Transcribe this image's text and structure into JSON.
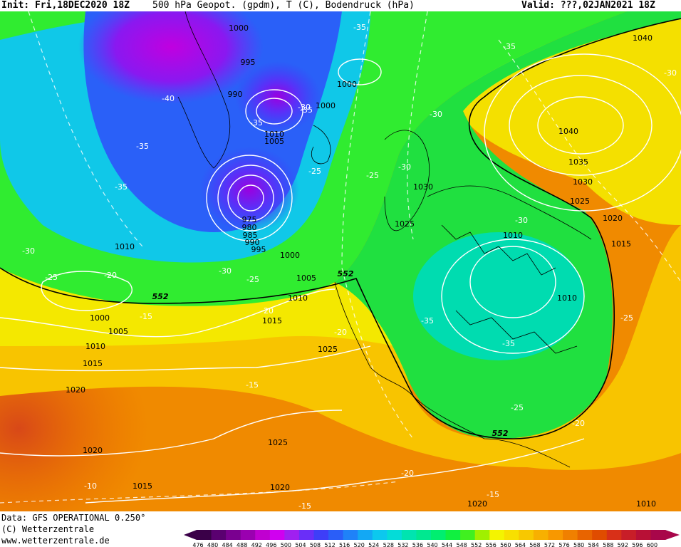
{
  "header": {
    "init": "Init: Fri,18DEC2020 18Z",
    "title": "500 hPa Geopot. (gpdm), T (C), Bodendruck (hPa)",
    "valid": "Valid: ???,02JAN2021 18Z"
  },
  "footer": {
    "data_line": "Data: GFS OPERATIONAL 0.250°",
    "copyright": "(C) Wetterzentrale",
    "website": "www.wetterzentrale.de"
  },
  "legend": {
    "ticks": [
      "476",
      "480",
      "484",
      "488",
      "492",
      "496",
      "500",
      "504",
      "508",
      "512",
      "516",
      "520",
      "524",
      "528",
      "532",
      "536",
      "540",
      "544",
      "548",
      "552",
      "556",
      "560",
      "564",
      "568",
      "572",
      "576",
      "580",
      "584",
      "588",
      "592",
      "596",
      "600"
    ],
    "colors": [
      "#3a0048",
      "#5a0070",
      "#7a0090",
      "#9a00b0",
      "#c000d0",
      "#d000f0",
      "#a020f0",
      "#6a2ef8",
      "#3e3ef8",
      "#2a5ef8",
      "#1f82f8",
      "#13a8f4",
      "#0cc8ee",
      "#04dcd8",
      "#00e4b0",
      "#00e890",
      "#00ee70",
      "#10f040",
      "#40f020",
      "#a0f000",
      "#f4f400",
      "#f8e000",
      "#f8c800",
      "#f8b000",
      "#f89800",
      "#f08000",
      "#e86400",
      "#e04c00",
      "#d83018",
      "#c81e28",
      "#b81036",
      "#a8064a"
    ],
    "highlight_value": "552"
  },
  "map": {
    "isobar_labels": [
      {
        "text": "1000"
      },
      {
        "text": "995"
      },
      {
        "text": "990"
      },
      {
        "text": "1000"
      },
      {
        "text": "1000"
      },
      {
        "text": "1010"
      },
      {
        "text": "1005"
      },
      {
        "text": "975"
      },
      {
        "text": "980"
      },
      {
        "text": "985"
      },
      {
        "text": "990"
      },
      {
        "text": "995"
      },
      {
        "text": "1000"
      },
      {
        "text": "1005"
      },
      {
        "text": "1010"
      },
      {
        "text": "1010"
      },
      {
        "text": "1015"
      },
      {
        "text": "1000"
      },
      {
        "text": "1005"
      },
      {
        "text": "1010"
      },
      {
        "text": "1015"
      },
      {
        "text": "1020"
      },
      {
        "text": "1025"
      },
      {
        "text": "1020"
      },
      {
        "text": "1025"
      },
      {
        "text": "1020"
      },
      {
        "text": "1015"
      },
      {
        "text": "1020"
      },
      {
        "text": "1040"
      },
      {
        "text": "1040"
      },
      {
        "text": "1035"
      },
      {
        "text": "1030"
      },
      {
        "text": "1025"
      },
      {
        "text": "1020"
      },
      {
        "text": "1015"
      },
      {
        "text": "1030"
      },
      {
        "text": "1025"
      },
      {
        "text": "1010"
      },
      {
        "text": "1010"
      },
      {
        "text": "1010"
      }
    ],
    "temperature_labels": [
      {
        "text": "-35"
      },
      {
        "text": "-35"
      },
      {
        "text": "-40"
      },
      {
        "text": "-35"
      },
      {
        "text": "-35"
      },
      {
        "text": "-35"
      },
      {
        "text": "-30"
      },
      {
        "text": "-25"
      },
      {
        "text": "-20"
      },
      {
        "text": "-30"
      },
      {
        "text": "-25"
      },
      {
        "text": "-20"
      },
      {
        "text": "-15"
      },
      {
        "text": "-25"
      },
      {
        "text": "-25"
      },
      {
        "text": "-30"
      },
      {
        "text": "-30"
      },
      {
        "text": "-30"
      },
      {
        "text": "-35"
      },
      {
        "text": "-20"
      },
      {
        "text": "-15"
      },
      {
        "text": "-10"
      },
      {
        "text": "-15"
      },
      {
        "text": "-20"
      },
      {
        "text": "-15"
      },
      {
        "text": "-35"
      },
      {
        "text": "-25"
      },
      {
        "text": "-20"
      },
      {
        "text": "-25"
      },
      {
        "text": "-30"
      },
      {
        "text": "-30"
      },
      {
        "text": "-35"
      }
    ],
    "geopotential_labels": [
      {
        "text": "552"
      },
      {
        "text": "552"
      },
      {
        "text": "552"
      }
    ]
  }
}
